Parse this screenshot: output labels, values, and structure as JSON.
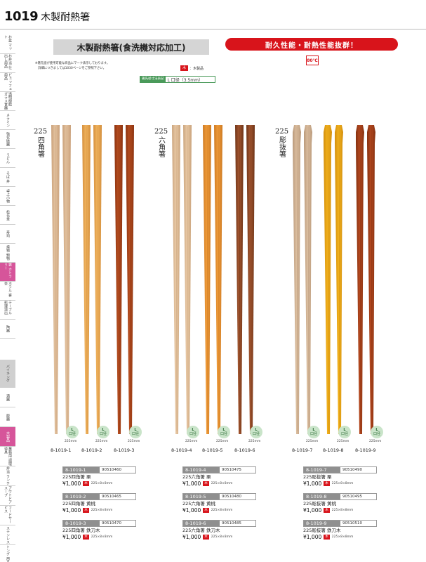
{
  "header": {
    "page_number": "1019",
    "page_title": "木製耐熱箸"
  },
  "sidebar": {
    "tabs": [
      {
        "label": "お盆 マット",
        "state": "normal"
      },
      {
        "label": "お弁当 仕出し用品",
        "state": "normal"
      },
      {
        "label": "ビュッフェ 用品",
        "state": "normal"
      },
      {
        "label": "透明樹脂 ガラス食器",
        "state": "normal"
      },
      {
        "label": "メラミン",
        "state": "normal"
      },
      {
        "label": "強化磁器",
        "state": "normal"
      },
      {
        "label": "うどん",
        "state": "normal"
      },
      {
        "label": "そば 丼",
        "state": "normal"
      },
      {
        "label": "卓上小物",
        "state": "normal"
      },
      {
        "label": "松花堂",
        "state": "normal"
      },
      {
        "label": "寿司",
        "state": "normal"
      },
      {
        "label": "焼物 鍋物",
        "state": "normal"
      },
      {
        "label": "箸 カトラリー",
        "state": "active"
      },
      {
        "label": "ホテル 宴会",
        "state": "normal"
      },
      {
        "label": "テーブル 料理演出",
        "state": "normal"
      },
      {
        "label": "陶器",
        "state": "normal"
      },
      {
        "label": "バイキング",
        "state": "gray"
      },
      {
        "label": "酒器",
        "state": "normal"
      },
      {
        "label": "飯器",
        "state": "normal"
      },
      {
        "label": "木製品",
        "state": "active"
      },
      {
        "label": "業務用 調理道具",
        "state": "normal"
      },
      {
        "label": "弁当 ランチ",
        "state": "normal"
      },
      {
        "label": "アウトドア スープ",
        "state": "normal"
      },
      {
        "label": "フードサービス",
        "state": "normal"
      },
      {
        "label": "ステンレス",
        "state": "normal"
      },
      {
        "label": "トング 用品",
        "state": "normal"
      },
      {
        "label": "卓上 調味品",
        "state": "normal"
      }
    ]
  },
  "title": "木製耐熱箸(食洗機対応加工)",
  "highlight": "耐久性能・耐熱性能抜群！",
  "temperature": "80℃",
  "note_lines": [
    "※箸先面が使用可能な商品にマーク表示しております。",
    "　詳細につきましては1030ページをご参照下さい。"
  ],
  "material_legend": {
    "chip": "木",
    "text": "：木製品"
  },
  "size_legend": {
    "label": "箸先径寸法表記",
    "value": "L 口径（3.5mm）"
  },
  "series": [
    {
      "number": "225",
      "name": "四角箸"
    },
    {
      "number": "225",
      "name": "六角箸"
    },
    {
      "number": "225",
      "name": "彫抜箸"
    }
  ],
  "sticks": [
    {
      "code": "8-1019-1",
      "size": "L",
      "size_sub": "口径",
      "length": "225mm",
      "color": "#e3c3a0",
      "shade": "#c9a07a"
    },
    {
      "code": "8-1019-2",
      "size": "L",
      "size_sub": "口径",
      "length": "225mm",
      "color": "#f0b45f",
      "shade": "#d48f3d"
    },
    {
      "code": "8-1019-3",
      "size": "L",
      "size_sub": "口径",
      "length": "225mm",
      "color": "#b74e20",
      "shade": "#8a3210"
    },
    {
      "code": "8-1019-4",
      "size": "L",
      "size_sub": "口径",
      "length": "225mm",
      "color": "#e9c9a6",
      "shade": "#caa47c"
    },
    {
      "code": "8-1019-5",
      "size": "L",
      "size_sub": "口径",
      "length": "225mm",
      "color": "#ef9b3a",
      "shade": "#cd7a22"
    },
    {
      "code": "8-1019-6",
      "size": "L",
      "size_sub": "口径",
      "length": "225mm",
      "color": "#a4562f",
      "shade": "#6e3418"
    },
    {
      "code": "8-1019-7",
      "size": "L",
      "size_sub": "口径",
      "length": "225mm",
      "color": "#dcbfa0",
      "shade": "#b8987a"
    },
    {
      "code": "8-1019-8",
      "size": "L",
      "size_sub": "口径",
      "length": "225mm",
      "color": "#f1b11d",
      "shade": "#d28e0c"
    },
    {
      "code": "8-1019-9",
      "size": "L",
      "size_sub": "口径",
      "length": "225mm",
      "color": "#b4481f",
      "shade": "#84300f"
    }
  ],
  "products": [
    {
      "code": "8-1019-1",
      "jan": "90510460",
      "name": "225四角箸 栗",
      "price": "¥1,000",
      "material": "木",
      "dims": "225×8×8mm"
    },
    {
      "code": "8-1019-2",
      "jan": "90510465",
      "name": "225四角箸 黄桃",
      "price": "¥1,000",
      "material": "木",
      "dims": "225×8×8mm"
    },
    {
      "code": "8-1019-3",
      "jan": "90510470",
      "name": "225四角箸 鉄刀木",
      "price": "¥1,000",
      "material": "木",
      "dims": "225×8×8mm"
    },
    {
      "code": "8-1019-4",
      "jan": "90510475",
      "name": "225六角箸 栗",
      "price": "¥1,000",
      "material": "木",
      "dims": "225×8×8mm"
    },
    {
      "code": "8-1019-5",
      "jan": "90510480",
      "name": "225六角箸 黄桃",
      "price": "¥1,000",
      "material": "木",
      "dims": "225×8×8mm"
    },
    {
      "code": "8-1019-6",
      "jan": "90510485",
      "name": "225六角箸 鉄刀木",
      "price": "¥1,000",
      "material": "木",
      "dims": "225×8×8mm"
    },
    {
      "code": "8-1019-7",
      "jan": "90510490",
      "name": "225彫抜箸 栗",
      "price": "¥1,000",
      "material": "木",
      "dims": "225×8×8mm"
    },
    {
      "code": "8-1019-8",
      "jan": "90510495",
      "name": "225彫抜箸 黄桃",
      "price": "¥1,000",
      "material": "木",
      "dims": "225×8×8mm"
    },
    {
      "code": "8-1019-9",
      "jan": "90510510",
      "name": "225彫抜箸 鉄刀木",
      "price": "¥1,000",
      "material": "木",
      "dims": "225×8×8mm"
    }
  ]
}
